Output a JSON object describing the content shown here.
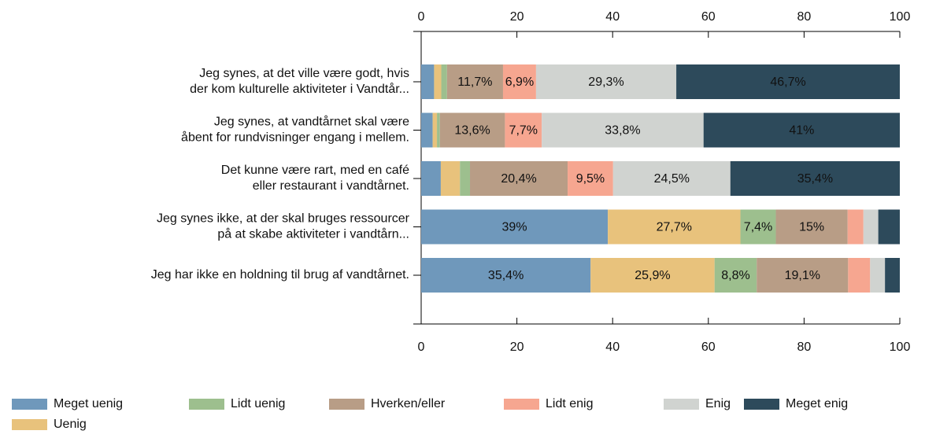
{
  "chart_data": {
    "type": "stacked_barh",
    "categories": [
      [
        "Jeg synes, at det ville være godt, hvis",
        "der kom kulturelle aktiviteter i Vandtår..."
      ],
      [
        "Jeg synes, at vandtårnet skal være",
        "åbent for rundvisninger engang i mellem."
      ],
      [
        "Det kunne være rart, med en café",
        "eller restaurant i vandtårnet."
      ],
      [
        "Jeg synes ikke, at der skal bruges ressourcer",
        "på at skabe aktiviteter i vandtårn..."
      ],
      [
        "Jeg har ikke en holdning til brug af vandtårnet."
      ]
    ],
    "series": [
      {
        "name": "Meget uenig",
        "color": "#6f98bb",
        "values": [
          2.7,
          2.4,
          4.1,
          39,
          35.4
        ],
        "value_labels": [
          null,
          null,
          null,
          "39%",
          "35,4%"
        ]
      },
      {
        "name": "Uenig",
        "color": "#e8c27c",
        "values": [
          1.5,
          0.9,
          4.0,
          27.7,
          25.9
        ],
        "value_labels": [
          null,
          null,
          null,
          "27,7%",
          "25,9%"
        ]
      },
      {
        "name": "Lidt uenig",
        "color": "#9dbf8e",
        "values": [
          1.2,
          0.6,
          2.1,
          7.4,
          8.8
        ],
        "value_labels": [
          null,
          null,
          null,
          "7,4%",
          "8,8%"
        ]
      },
      {
        "name": "Hverken/eller",
        "color": "#b89d86",
        "values": [
          11.7,
          13.6,
          20.4,
          15,
          19.1
        ],
        "value_labels": [
          "11,7%",
          "13,6%",
          "20,4%",
          "15%",
          "19,1%"
        ]
      },
      {
        "name": "Lidt enig",
        "color": "#f6a690",
        "values": [
          6.9,
          7.7,
          9.5,
          3.3,
          4.6
        ],
        "value_labels": [
          "6,9%",
          "7,7%",
          "9,5%",
          null,
          null
        ]
      },
      {
        "name": "Enig",
        "color": "#d0d3d0",
        "values": [
          29.3,
          33.8,
          24.5,
          3.1,
          3.1
        ],
        "value_labels": [
          "29,3%",
          "33,8%",
          "24,5%",
          null,
          null
        ]
      },
      {
        "name": "Meget enig",
        "color": "#2d4a5b",
        "values": [
          46.7,
          41,
          35.4,
          4.5,
          3.1
        ],
        "value_labels": [
          "46,7%",
          "41%",
          "35,4%",
          null,
          null
        ]
      }
    ],
    "xlim": [
      0,
      100
    ],
    "xticks": [
      0,
      20,
      40,
      60,
      80,
      100
    ]
  }
}
